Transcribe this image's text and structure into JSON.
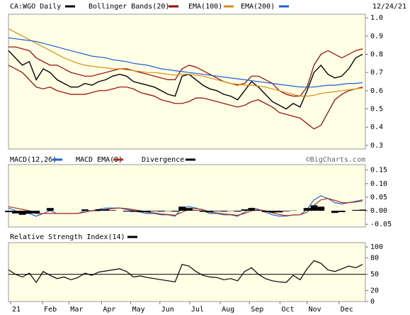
{
  "chart_data": [
    {
      "type": "line",
      "date": "12/24/21",
      "xlim": [
        0,
        51.4
      ],
      "ylim": [
        0.28,
        1.02
      ],
      "yticks": [
        {
          "value": 1.0,
          "label": "1.0"
        },
        0.9,
        0.8,
        0.7,
        0.6,
        0.5,
        0.4,
        0.3
      ],
      "series": [
        {
          "name": "CA:WGO Daily",
          "color": "#000000",
          "values": [
            0.82,
            0.78,
            0.74,
            0.76,
            0.66,
            0.72,
            0.7,
            0.66,
            0.64,
            0.62,
            0.62,
            0.64,
            0.63,
            0.65,
            0.66,
            0.68,
            0.69,
            0.68,
            0.65,
            0.64,
            0.63,
            0.62,
            0.6,
            0.58,
            0.57,
            0.68,
            0.69,
            0.66,
            0.63,
            0.61,
            0.6,
            0.58,
            0.57,
            0.55,
            0.6,
            0.65,
            0.62,
            0.58,
            0.54,
            0.52,
            0.5,
            0.53,
            0.51,
            0.6,
            0.7,
            0.74,
            0.69,
            0.67,
            0.68,
            0.72,
            0.78,
            0.8
          ]
        },
        {
          "name": "Bollinger Bands(20)",
          "color": "#990000",
          "upper": [
            0.84,
            0.84,
            0.83,
            0.82,
            0.78,
            0.76,
            0.74,
            0.74,
            0.72,
            0.7,
            0.69,
            0.68,
            0.68,
            0.69,
            0.7,
            0.71,
            0.72,
            0.72,
            0.71,
            0.7,
            0.69,
            0.68,
            0.67,
            0.66,
            0.66,
            0.72,
            0.74,
            0.73,
            0.71,
            0.69,
            0.67,
            0.65,
            0.64,
            0.63,
            0.64,
            0.68,
            0.68,
            0.66,
            0.64,
            0.6,
            0.58,
            0.57,
            0.57,
            0.62,
            0.74,
            0.8,
            0.82,
            0.8,
            0.78,
            0.8,
            0.82,
            0.83
          ],
          "lower": [
            0.74,
            0.72,
            0.7,
            0.66,
            0.62,
            0.61,
            0.62,
            0.6,
            0.59,
            0.58,
            0.58,
            0.58,
            0.59,
            0.6,
            0.6,
            0.61,
            0.62,
            0.62,
            0.61,
            0.59,
            0.58,
            0.57,
            0.55,
            0.54,
            0.53,
            0.53,
            0.54,
            0.56,
            0.56,
            0.55,
            0.54,
            0.53,
            0.52,
            0.51,
            0.52,
            0.54,
            0.55,
            0.53,
            0.51,
            0.48,
            0.47,
            0.46,
            0.45,
            0.42,
            0.39,
            0.41,
            0.48,
            0.55,
            0.58,
            0.6,
            0.61,
            0.62
          ]
        },
        {
          "name": "EMA(100)",
          "color": "#d98c1a",
          "values": [
            0.94,
            0.92,
            0.9,
            0.88,
            0.86,
            0.84,
            0.82,
            0.8,
            0.78,
            0.765,
            0.75,
            0.74,
            0.735,
            0.73,
            0.725,
            0.72,
            0.72,
            0.715,
            0.71,
            0.705,
            0.7,
            0.7,
            0.695,
            0.69,
            0.685,
            0.69,
            0.69,
            0.685,
            0.68,
            0.67,
            0.66,
            0.65,
            0.64,
            0.635,
            0.63,
            0.63,
            0.625,
            0.62,
            0.61,
            0.6,
            0.59,
            0.58,
            0.57,
            0.57,
            0.575,
            0.585,
            0.59,
            0.595,
            0.6,
            0.605,
            0.61,
            0.615
          ]
        },
        {
          "name": "EMA(200)",
          "color": "#1f5fd0",
          "values": [
            0.89,
            0.885,
            0.88,
            0.875,
            0.87,
            0.86,
            0.85,
            0.84,
            0.83,
            0.82,
            0.81,
            0.8,
            0.79,
            0.785,
            0.78,
            0.77,
            0.765,
            0.76,
            0.75,
            0.745,
            0.74,
            0.73,
            0.72,
            0.715,
            0.71,
            0.705,
            0.7,
            0.695,
            0.69,
            0.685,
            0.68,
            0.675,
            0.67,
            0.665,
            0.66,
            0.655,
            0.65,
            0.645,
            0.64,
            0.635,
            0.63,
            0.625,
            0.62,
            0.62,
            0.62,
            0.625,
            0.63,
            0.63,
            0.635,
            0.64,
            0.64,
            0.645
          ]
        }
      ]
    },
    {
      "type": "line",
      "source": "©BigCharts.com",
      "xlim": [
        0,
        51.4
      ],
      "ylim": [
        -0.06,
        0.17
      ],
      "yticks": [
        {
          "value": 0.15,
          "label": "0.15"
        },
        {
          "value": 0.1,
          "label": "0.10"
        },
        {
          "value": 0.05,
          "label": "0.05"
        },
        {
          "value": 0,
          "label": "0.00"
        },
        {
          "value": -0.05,
          "label": "-0.05"
        }
      ],
      "series": [
        {
          "name": "MACD(12,26)",
          "color": "#1f5fd0",
          "values": [
            0.01,
            0.0,
            -0.01,
            -0.01,
            -0.02,
            -0.01,
            0.0,
            -0.01,
            -0.01,
            -0.01,
            -0.01,
            0.0,
            0.0,
            0.005,
            0.01,
            0.01,
            0.01,
            0.005,
            0.0,
            -0.005,
            -0.01,
            -0.01,
            -0.015,
            -0.015,
            -0.02,
            0.01,
            0.015,
            0.01,
            0.0,
            -0.01,
            -0.01,
            -0.015,
            -0.015,
            -0.02,
            -0.005,
            0.01,
            0.005,
            -0.005,
            -0.015,
            -0.02,
            -0.02,
            -0.015,
            -0.015,
            0.005,
            0.04,
            0.055,
            0.045,
            0.03,
            0.025,
            0.03,
            0.035,
            0.04
          ]
        },
        {
          "name": "MACD EMA(9)",
          "color": "#b03020",
          "values": [
            0.015,
            0.01,
            0.005,
            0.0,
            -0.01,
            -0.01,
            -0.01,
            -0.01,
            -0.01,
            -0.01,
            -0.01,
            -0.005,
            0.0,
            0.0,
            0.005,
            0.008,
            0.01,
            0.008,
            0.004,
            0.0,
            -0.005,
            -0.008,
            -0.012,
            -0.014,
            -0.017,
            -0.005,
            0.005,
            0.008,
            0.004,
            -0.004,
            -0.008,
            -0.012,
            -0.014,
            -0.017,
            -0.01,
            0.0,
            0.003,
            0.0,
            -0.008,
            -0.014,
            -0.018,
            -0.016,
            -0.015,
            -0.005,
            0.02,
            0.04,
            0.045,
            0.038,
            0.03,
            0.03,
            0.032,
            0.036
          ]
        },
        {
          "name": "Divergence",
          "color": "#000000",
          "kind": "histogram",
          "values": [
            -0.005,
            -0.01,
            -0.015,
            -0.01,
            -0.01,
            0,
            0.01,
            0,
            0,
            0,
            0,
            0.005,
            0,
            0.005,
            0.005,
            0.002,
            0,
            -0.003,
            -0.004,
            -0.005,
            -0.005,
            -0.002,
            -0.003,
            -0.001,
            -0.003,
            0.015,
            0.01,
            0.002,
            -0.004,
            -0.006,
            -0.002,
            -0.003,
            -0.001,
            -0.003,
            0.005,
            0.01,
            0.002,
            -0.005,
            -0.007,
            -0.006,
            -0.002,
            0.001,
            0,
            0.01,
            0.02,
            0.015,
            0,
            -0.008,
            -0.005,
            0,
            0.003,
            0.004
          ]
        }
      ]
    },
    {
      "type": "line",
      "xlim": [
        0,
        51.4
      ],
      "ylim": [
        0,
        108
      ],
      "yticks": [
        100,
        80,
        50,
        20,
        0
      ],
      "reference_line": 50,
      "xticks": [
        {
          "value": 0.3,
          "label": "21"
        },
        {
          "value": 4.9,
          "label": "Feb"
        },
        {
          "value": 8.7,
          "label": "Mar"
        },
        {
          "value": 13.4,
          "label": "Apr"
        },
        {
          "value": 17.6,
          "label": "May"
        },
        {
          "value": 21.8,
          "label": "Jun"
        },
        {
          "value": 26.1,
          "label": "Jul"
        },
        {
          "value": 30.5,
          "label": "Aug"
        },
        {
          "value": 34.7,
          "label": "Sep"
        },
        {
          "value": 39.1,
          "label": "Oct"
        },
        {
          "value": 43.0,
          "label": "Nov"
        },
        {
          "value": 47.6,
          "label": "Dec"
        }
      ],
      "series": [
        {
          "name": "Relative Strength Index(14)",
          "color": "#000000",
          "values": [
            58,
            50,
            45,
            52,
            35,
            55,
            48,
            42,
            45,
            40,
            44,
            52,
            48,
            54,
            56,
            58,
            60,
            55,
            45,
            47,
            44,
            42,
            40,
            38,
            36,
            68,
            65,
            55,
            48,
            45,
            44,
            40,
            42,
            38,
            55,
            62,
            50,
            42,
            38,
            36,
            35,
            48,
            40,
            60,
            75,
            70,
            58,
            55,
            60,
            65,
            62,
            68
          ]
        }
      ]
    }
  ]
}
